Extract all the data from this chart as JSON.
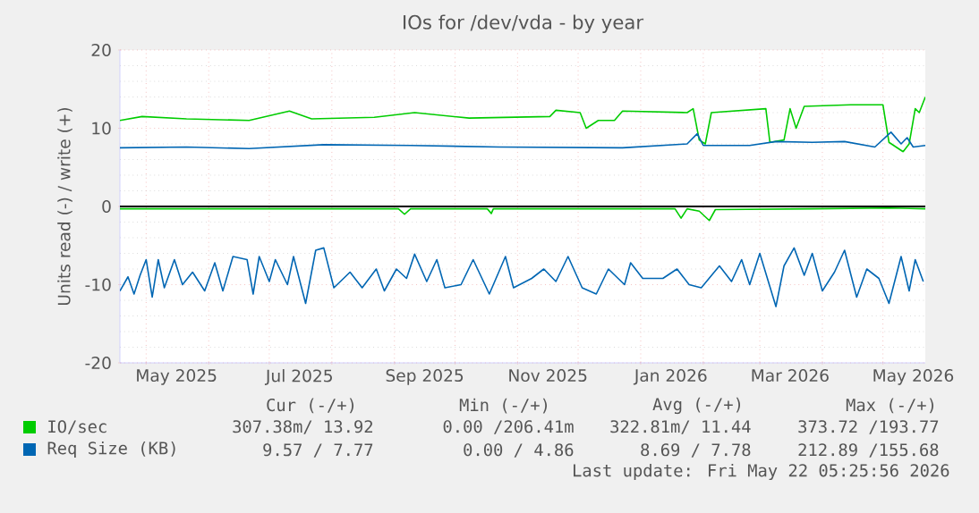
{
  "chart_data": {
    "type": "line",
    "title": "IOs for /dev/vda - by year",
    "ylabel": "Units read (-) / write (+)",
    "xlim": [
      "2025-04-18",
      "2026-05-22"
    ],
    "xticks": [
      {
        "value": "2025-05-01",
        "label": null
      },
      {
        "value": "2025-06-01",
        "label": null
      },
      {
        "value": "2025-07-01",
        "label": null
      },
      {
        "value": "2025-08-01",
        "label": null
      },
      {
        "value": "2025-09-01",
        "label": null
      },
      {
        "value": "2025-10-01",
        "label": null
      },
      {
        "value": "2025-11-01",
        "label": null
      },
      {
        "value": "2025-12-01",
        "label": null
      },
      {
        "value": "2026-01-01",
        "label": null
      },
      {
        "value": "2026-02-01",
        "label": null
      },
      {
        "value": "2026-03-01",
        "label": null
      },
      {
        "value": "2026-04-01",
        "label": null
      },
      {
        "value": "2026-05-01",
        "label": null
      },
      {
        "value": "2025-05-16",
        "label": "May 2025"
      },
      {
        "value": "2025-07-16",
        "label": "Jul 2025"
      },
      {
        "value": "2025-09-16",
        "label": "Sep 2025"
      },
      {
        "value": "2025-11-16",
        "label": "Nov 2025"
      },
      {
        "value": "2026-01-16",
        "label": "Jan 2026"
      },
      {
        "value": "2026-03-16",
        "label": "Mar 2026"
      },
      {
        "value": "2026-05-16",
        "label": "May 2026"
      }
    ],
    "ylim": [
      -20,
      20
    ],
    "yticks": [
      -20,
      -10,
      0,
      10,
      20
    ],
    "grid": true,
    "legend": "bottom",
    "ref_lines": [
      {
        "axis": "y",
        "value": 0,
        "color": "#000000"
      }
    ],
    "series": [
      {
        "name": "IO/sec",
        "color": "#00cc00",
        "x": [
          "2025-04-18",
          "2025-04-29",
          "2025-05-21",
          "2025-06-21",
          "2025-07-11",
          "2025-07-22",
          "2025-08-22",
          "2025-09-11",
          "2025-10-08",
          "2025-11-17",
          "2025-11-20",
          "2025-12-02",
          "2025-12-05",
          "2025-12-11",
          "2025-12-19",
          "2025-12-23",
          "2026-01-24",
          "2026-01-27",
          "2026-01-30",
          "2026-02-02",
          "2026-02-05",
          "2026-03-04",
          "2026-03-06",
          "2026-03-13",
          "2026-03-16",
          "2026-03-19",
          "2026-03-23",
          "2026-04-15",
          "2026-05-01",
          "2026-05-04",
          "2026-05-11",
          "2026-05-14",
          "2026-05-17",
          "2026-05-19",
          "2026-05-22"
        ],
        "values": [
          11.0,
          11.5,
          11.2,
          11.0,
          12.2,
          11.2,
          11.4,
          12.0,
          11.3,
          11.5,
          12.3,
          12.0,
          10.0,
          11.0,
          11.0,
          12.2,
          12.0,
          12.5,
          8.5,
          8.0,
          12.0,
          12.5,
          8.2,
          8.5,
          12.5,
          10.0,
          12.8,
          13.0,
          13.0,
          8.2,
          7.0,
          8.0,
          12.5,
          12.0,
          14.0
        ]
      },
      {
        "color": "#00cc00",
        "x": [
          "2025-04-18",
          "2025-09-03",
          "2025-09-06",
          "2025-09-09",
          "2025-10-17",
          "2025-10-19",
          "2025-10-20",
          "2026-01-18",
          "2026-01-21",
          "2026-01-24",
          "2026-01-30",
          "2026-02-04",
          "2026-02-07",
          "2026-03-27",
          "2026-05-04",
          "2026-05-22"
        ],
        "values": [
          -0.3,
          -0.3,
          -1.0,
          -0.3,
          -0.3,
          -0.9,
          -0.3,
          -0.3,
          -1.5,
          -0.3,
          -0.6,
          -1.8,
          -0.4,
          -0.3,
          -0.2,
          -0.3
        ]
      },
      {
        "name": "Req Size (KB)",
        "color": "#0066b3",
        "x": [
          "2025-04-18",
          "2025-05-21",
          "2025-06-21",
          "2025-07-28",
          "2025-09-09",
          "2025-10-23",
          "2025-12-23",
          "2026-01-24",
          "2026-01-29",
          "2026-02-01",
          "2026-02-24",
          "2026-03-09",
          "2026-03-27",
          "2026-04-12",
          "2026-04-27",
          "2026-05-05",
          "2026-05-10",
          "2026-05-13",
          "2026-05-16",
          "2026-05-22"
        ],
        "values": [
          7.5,
          7.6,
          7.4,
          7.9,
          7.8,
          7.6,
          7.5,
          8.0,
          9.3,
          7.8,
          7.8,
          8.3,
          8.2,
          8.3,
          7.6,
          9.5,
          8.0,
          8.8,
          7.6,
          7.8
        ]
      },
      {
        "color": "#0066b3",
        "x": [
          "2025-04-18",
          "2025-04-22",
          "2025-04-25",
          "2025-04-28",
          "2025-05-01",
          "2025-05-04",
          "2025-05-07",
          "2025-05-10",
          "2025-05-15",
          "2025-05-19",
          "2025-05-24",
          "2025-05-30",
          "2025-06-04",
          "2025-06-08",
          "2025-06-13",
          "2025-06-20",
          "2025-06-23",
          "2025-06-26",
          "2025-07-01",
          "2025-07-04",
          "2025-07-10",
          "2025-07-13",
          "2025-07-19",
          "2025-07-24",
          "2025-07-28",
          "2025-08-02",
          "2025-08-10",
          "2025-08-16",
          "2025-08-23",
          "2025-08-27",
          "2025-09-02",
          "2025-09-07",
          "2025-09-11",
          "2025-09-17",
          "2025-09-22",
          "2025-09-26",
          "2025-10-04",
          "2025-10-10",
          "2025-10-18",
          "2025-10-26",
          "2025-10-30",
          "2025-11-08",
          "2025-11-14",
          "2025-11-20",
          "2025-11-26",
          "2025-12-03",
          "2025-12-10",
          "2025-12-16",
          "2025-12-24",
          "2025-12-27",
          "2026-01-02",
          "2026-01-12",
          "2026-01-19",
          "2026-01-25",
          "2026-01-31",
          "2026-02-09",
          "2026-02-15",
          "2026-02-20",
          "2026-02-24",
          "2026-03-01",
          "2026-03-09",
          "2026-03-13",
          "2026-03-18",
          "2026-03-23",
          "2026-03-27",
          "2026-04-01",
          "2026-04-07",
          "2026-04-12",
          "2026-04-18",
          "2026-04-23",
          "2026-04-29",
          "2026-05-04",
          "2026-05-10",
          "2026-05-14",
          "2026-05-17",
          "2026-05-21"
        ],
        "values": [
          -10.8,
          -9,
          -11.2,
          -8.8,
          -6.8,
          -11.6,
          -6.8,
          -10.4,
          -6.8,
          -10,
          -8.4,
          -10.8,
          -7.2,
          -10.8,
          -6.4,
          -6.8,
          -11.2,
          -6.4,
          -9.6,
          -6.8,
          -10,
          -6.4,
          -12.4,
          -5.6,
          -5.3,
          -10.4,
          -8.4,
          -10.4,
          -8,
          -10.8,
          -8,
          -9.2,
          -6.1,
          -9.6,
          -6.8,
          -10.4,
          -10,
          -6.8,
          -11.2,
          -6.4,
          -10.4,
          -9.2,
          -8,
          -9.6,
          -6.4,
          -10.4,
          -11.2,
          -8,
          -10,
          -7.2,
          -9.2,
          -9.2,
          -8,
          -10,
          -10.4,
          -7.6,
          -9.6,
          -6.8,
          -10,
          -6,
          -12.8,
          -7.6,
          -5.3,
          -8.8,
          -6,
          -10.8,
          -8.4,
          -5.6,
          -11.6,
          -8,
          -9.2,
          -12.4,
          -6.4,
          -10.8,
          -6.8,
          -9.6
        ]
      }
    ],
    "annotations": [
      "Cur (-/+)",
      "Min (-/+)",
      "Avg (-/+)",
      "Max (-/+)",
      "307.38m/ 13.92",
      "0.00 /206.41m",
      "322.81m/ 11.44",
      "373.72 /193.77",
      "9.57 /  7.77",
      "0.00 /  4.86",
      "8.69 /  7.78",
      "212.89 /155.68",
      "Last update: Fri May 22 05:25:56 2026"
    ]
  }
}
